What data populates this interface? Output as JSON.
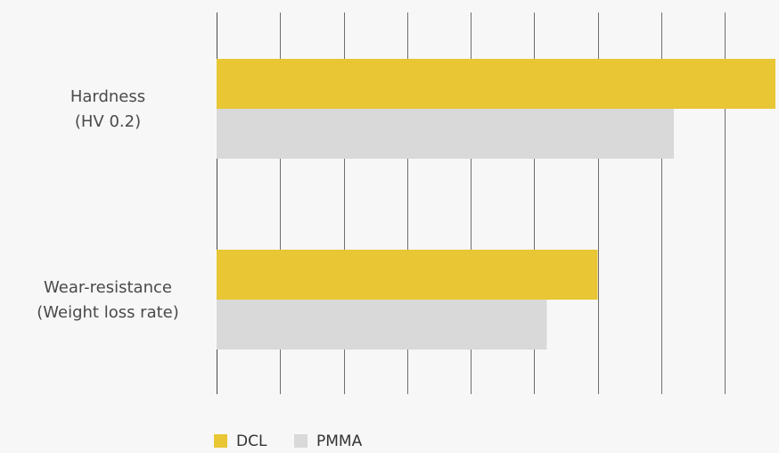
{
  "chart_data": {
    "type": "bar",
    "orientation": "horizontal",
    "title": "",
    "xlabel": "",
    "ylabel": "",
    "grid": true,
    "legend_position": "bottom",
    "xlim": [
      0,
      8.8
    ],
    "grid_ticks": [
      0,
      1,
      2,
      3,
      4,
      5,
      6,
      7,
      8
    ],
    "categories": [
      {
        "lines": [
          "Hardness",
          "(HV 0.2)"
        ]
      },
      {
        "lines": [
          "Wear-resistance",
          "(Weight loss rate)"
        ]
      }
    ],
    "series": [
      {
        "name": "DCL",
        "color": "#e8c634",
        "values": [
          8.8,
          6.0
        ]
      },
      {
        "name": "PMMA",
        "color": "#d9d9d9",
        "values": [
          7.2,
          5.2
        ]
      }
    ]
  }
}
